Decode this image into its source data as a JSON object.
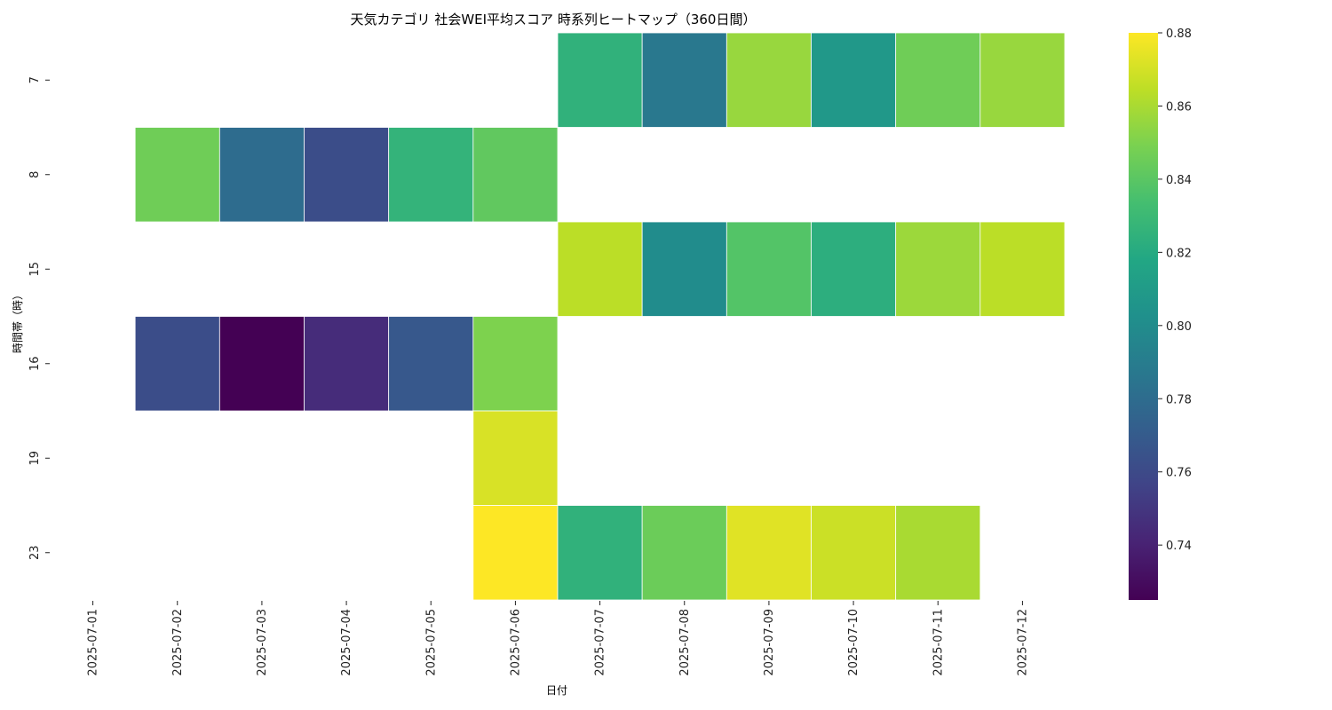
{
  "chart_data": {
    "type": "heatmap",
    "title": "天気カテゴリ 社会WEI平均スコア 時系列ヒートマップ（360日間）",
    "xlabel": "日付",
    "ylabel": "時間帯（時）",
    "x_categories": [
      "2025-07-01",
      "2025-07-02",
      "2025-07-03",
      "2025-07-04",
      "2025-07-05",
      "2025-07-06",
      "2025-07-07",
      "2025-07-08",
      "2025-07-09",
      "2025-07-10",
      "2025-07-11",
      "2025-07-12"
    ],
    "y_categories": [
      "7",
      "8",
      "15",
      "16",
      "19",
      "23"
    ],
    "values": [
      [
        null,
        null,
        null,
        null,
        null,
        null,
        0.825,
        0.787,
        0.856,
        0.808,
        0.846,
        0.856
      ],
      [
        null,
        0.846,
        0.78,
        0.762,
        0.826,
        0.842,
        null,
        null,
        null,
        null,
        null,
        null
      ],
      [
        null,
        null,
        null,
        null,
        null,
        null,
        0.864,
        0.8,
        0.838,
        0.823,
        0.857,
        0.864
      ],
      [
        null,
        0.762,
        0.725,
        0.745,
        0.768,
        0.85,
        null,
        null,
        null,
        null,
        null,
        null
      ],
      [
        null,
        null,
        null,
        null,
        null,
        0.871,
        null,
        null,
        null,
        null,
        null,
        null
      ],
      [
        null,
        null,
        null,
        null,
        null,
        0.88,
        0.825,
        0.845,
        0.873,
        0.868,
        0.86,
        null
      ]
    ],
    "colorscale": "viridis",
    "vmin": 0.725,
    "vmax": 0.88,
    "colorbar_ticks": [
      "0.74",
      "0.76",
      "0.78",
      "0.80",
      "0.82",
      "0.84",
      "0.86",
      "0.88"
    ]
  }
}
